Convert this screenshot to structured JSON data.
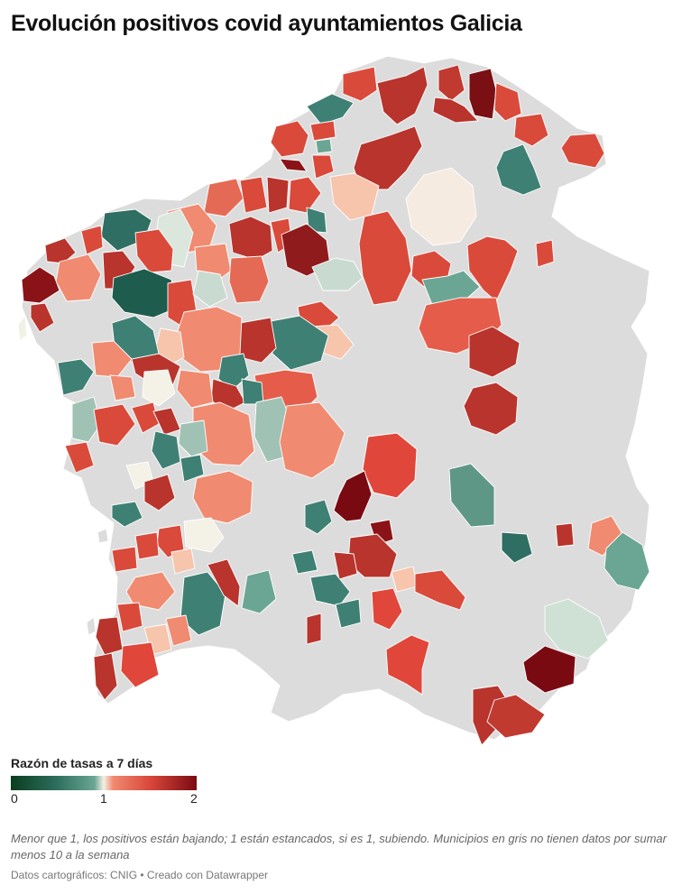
{
  "title": "Evolución positivos covid ayuntamientos Galicia",
  "legend": {
    "title": "Razón de tasas a 7 días",
    "ticks": [
      "0",
      "1",
      "2"
    ],
    "colors": [
      "#0a3d1f",
      "#2e6f5e",
      "#6aa693",
      "#f4f1e6",
      "#f08a70",
      "#d9473a",
      "#7a0a12"
    ]
  },
  "note": "Menor que 1, los positivos están bajando; 1 están estancados, si es 1, subiendo. Municipios en gris no tienen datos por sumar menos 10 a la semana",
  "credit": "Datos cartográficos: CNIG • Creado con Datawrapper",
  "colors": {
    "no_data": "#dcdcdc",
    "outline": "#ffffff"
  }
}
